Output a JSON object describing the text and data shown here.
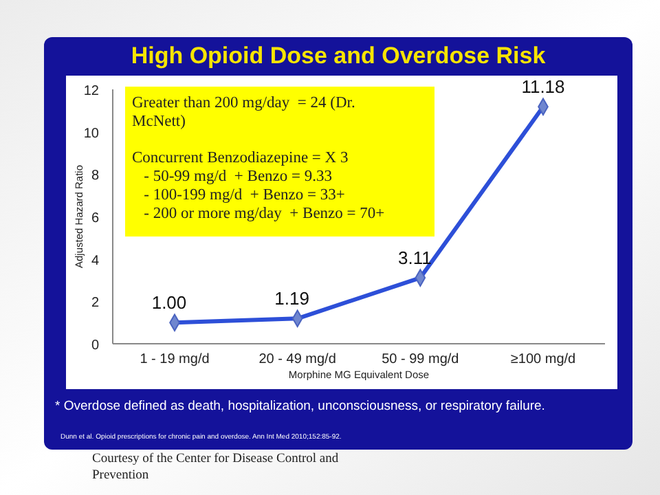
{
  "chart_data": {
    "type": "line",
    "title": "High Opioid Dose and Overdose Risk",
    "categories": [
      "1 - 19 mg/d",
      "20 - 49 mg/d",
      "50 - 99 mg/d",
      "≥100 mg/d"
    ],
    "series": [
      {
        "color": "#2d4fd8",
        "values": [
          1.0,
          1.19,
          3.11,
          11.18
        ],
        "value_labels": [
          "1.00",
          "1.19",
          "3.11",
          "11.18"
        ]
      }
    ],
    "ylim": [
      0,
      12
    ],
    "yticks": [
      0,
      2,
      4,
      6,
      8,
      10,
      12
    ],
    "grid": false,
    "marker": "diamond",
    "line_style": "solid",
    "xlabel": "Morphine MG Equivalent Dose",
    "ylabel": "Adjusted Hazard Ratio",
    "annotations": [
      "Greater than 200 mg/day  = 24 (Dr. McNett)\n\nConcurrent Benzodiazepine = X 3\n   - 50-99 mg/d  + Benzo = 9.33\n   - 100-199 mg/d  + Benzo = 33+\n   - 200 or more mg/day  + Benzo = 70+",
      "* Overdose defined as death, hospitalization, unconsciousness, or respiratory failure.",
      "Dunn et al. Opioid prescriptions for chronic pain and overdose. Ann Int Med 2010;152:85-92.",
      "Courtesy of the Center for Disease Control and Prevention"
    ]
  }
}
